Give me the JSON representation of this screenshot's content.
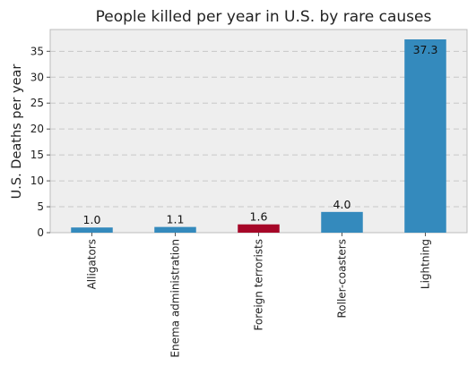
{
  "chart_data": {
    "type": "bar",
    "title": "People killed per year in U.S. by rare causes",
    "xlabel": "",
    "ylabel": "U.S. Deaths per year",
    "categories": [
      "Alligators",
      "Enema administration",
      "Foreign terrorists",
      "Roller-coasters",
      "Lightning"
    ],
    "values": [
      1.0,
      1.1,
      1.6,
      4.0,
      37.3
    ],
    "value_labels": [
      "1.0",
      "1.1",
      "1.6",
      "4.0",
      "37.3"
    ],
    "highlight_index": 2,
    "ylim": [
      0,
      39.2
    ],
    "yticks": [
      0,
      5,
      10,
      15,
      20,
      25,
      30,
      35
    ],
    "grid": "horizontal dashed",
    "colors": {
      "bar": "#348abd",
      "highlight": "#a60628",
      "background": "#eeeeee",
      "grid": "#c8c8c8"
    }
  }
}
